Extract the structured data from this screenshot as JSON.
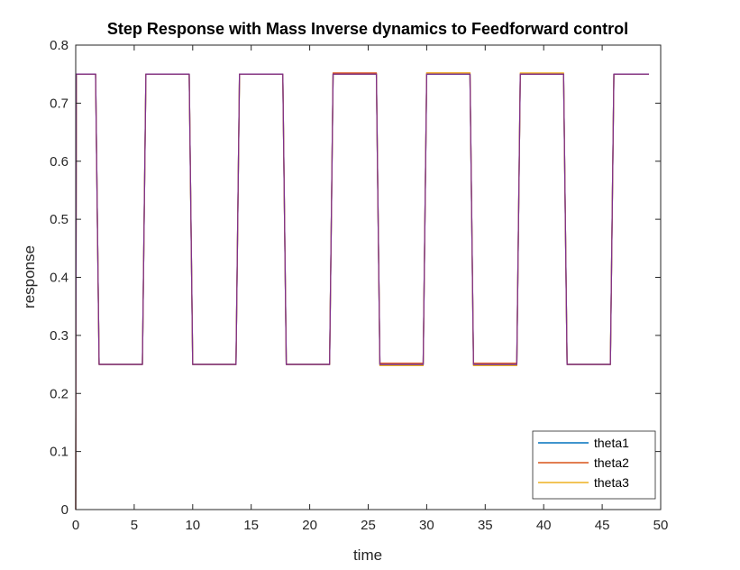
{
  "chart_data": {
    "type": "line",
    "title": "Step Response with Mass Inverse dynamics to Feedforward control",
    "xlabel": "time",
    "ylabel": "response",
    "xlim": [
      0,
      50
    ],
    "ylim": [
      0,
      0.8
    ],
    "xticks": [
      "0",
      "5",
      "10",
      "15",
      "20",
      "25",
      "30",
      "35",
      "40",
      "45",
      "50"
    ],
    "yticks": [
      "0",
      "0.1",
      "0.2",
      "0.3",
      "0.4",
      "0.5",
      "0.6",
      "0.7",
      "0.8"
    ],
    "grid": false,
    "legend_position": "bottom-right",
    "series": [
      {
        "name": "theta1",
        "color": "#0072BD",
        "x": [
          0,
          0.05,
          0.15,
          1.7,
          2.0,
          5.7,
          6.0,
          9.7,
          10.0,
          13.7,
          14.0,
          17.7,
          18.0,
          21.7,
          22.0,
          25.7,
          26.0,
          29.7,
          30.0,
          33.7,
          34.0,
          37.7,
          38.0,
          41.7,
          42.0,
          45.7,
          46.0,
          49
        ],
        "y": [
          0,
          0.75,
          0.75,
          0.75,
          0.25,
          0.25,
          0.75,
          0.75,
          0.25,
          0.25,
          0.75,
          0.75,
          0.25,
          0.25,
          0.75,
          0.75,
          0.25,
          0.25,
          0.75,
          0.75,
          0.25,
          0.25,
          0.75,
          0.75,
          0.25,
          0.25,
          0.75,
          0.75
        ]
      },
      {
        "name": "theta2",
        "color": "#D95319",
        "x": [
          0,
          0.05,
          0.15,
          1.7,
          2.0,
          5.7,
          6.0,
          9.7,
          10.0,
          13.7,
          14.0,
          17.7,
          18.0,
          21.7,
          22.0,
          25.7,
          26.0,
          29.7,
          30.0,
          33.7,
          34.0,
          37.7,
          38.0,
          41.7,
          42.0,
          45.7,
          46.0,
          49
        ],
        "y": [
          0,
          0.75,
          0.75,
          0.75,
          0.25,
          0.25,
          0.75,
          0.75,
          0.25,
          0.25,
          0.75,
          0.75,
          0.25,
          0.25,
          0.752,
          0.752,
          0.252,
          0.252,
          0.752,
          0.752,
          0.252,
          0.252,
          0.75,
          0.75,
          0.25,
          0.25,
          0.75,
          0.75
        ]
      },
      {
        "name": "theta3",
        "color": "#EDB120",
        "x": [
          0,
          0.05,
          0.15,
          1.7,
          2.0,
          5.7,
          6.0,
          9.7,
          10.0,
          13.7,
          14.0,
          17.7,
          18.0,
          21.7,
          22.0,
          25.7,
          26.0,
          29.7,
          30.0,
          33.7,
          34.0,
          37.7,
          38.0,
          41.7,
          42.0,
          45.7,
          46.0,
          49
        ],
        "y": [
          0,
          0.75,
          0.75,
          0.75,
          0.25,
          0.25,
          0.75,
          0.75,
          0.25,
          0.25,
          0.75,
          0.75,
          0.25,
          0.25,
          0.75,
          0.75,
          0.248,
          0.248,
          0.752,
          0.752,
          0.248,
          0.248,
          0.752,
          0.752,
          0.25,
          0.25,
          0.75,
          0.75
        ]
      },
      {
        "color": "#7E2F8E",
        "x": [
          0,
          0.05,
          0.15,
          1.7,
          2.0,
          5.7,
          6.0,
          9.7,
          10.0,
          13.7,
          14.0,
          17.7,
          18.0,
          21.7,
          22.0,
          25.7,
          26.0,
          29.7,
          30.0,
          33.7,
          34.0,
          37.7,
          38.0,
          41.7,
          42.0,
          45.7,
          46.0,
          49
        ],
        "y": [
          0,
          0.75,
          0.75,
          0.75,
          0.25,
          0.25,
          0.75,
          0.75,
          0.25,
          0.25,
          0.75,
          0.75,
          0.25,
          0.25,
          0.75,
          0.75,
          0.25,
          0.25,
          0.75,
          0.75,
          0.25,
          0.25,
          0.75,
          0.75,
          0.25,
          0.25,
          0.75,
          0.75
        ]
      }
    ]
  }
}
